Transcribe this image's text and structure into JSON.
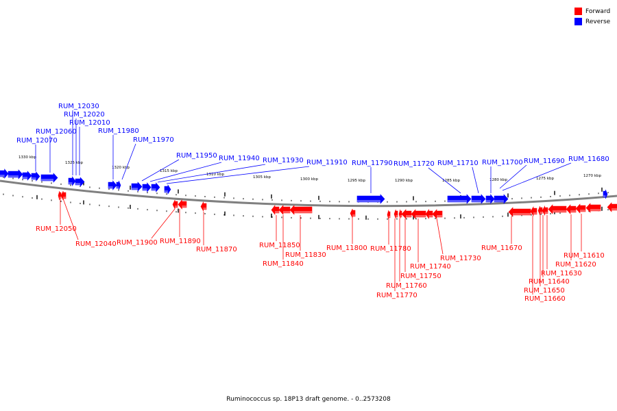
{
  "caption": "Ruminococcus sp. 18P13 draft genome. - 0..2573208",
  "legend": [
    {
      "label": "Forward",
      "color": "#ff0000"
    },
    {
      "label": "Reverse",
      "color": "#0000ff"
    }
  ],
  "colors": {
    "forward": "#ff0000",
    "reverse": "#0000ff",
    "backbone": "#808080"
  },
  "ruler": [
    "1330 kbp",
    "1325 kbp",
    "1320 kbp",
    "1315 kbp",
    "1310 kbp",
    "1305 kbp",
    "1300 kbp",
    "1295 kbp",
    "1290 kbp",
    "1285 kbp",
    "1280 kbp",
    "1275 kbp",
    "1270 kbp"
  ],
  "reverse_labels": [
    "RUM_12030",
    "RUM_12020",
    "RUM_12010",
    "RUM_12060",
    "RUM_11980",
    "RUM_12070",
    "RUM_11970",
    "RUM_11950",
    "RUM_11940",
    "RUM_11930",
    "RUM_11910",
    "RUM_11790",
    "RUM_11720",
    "RUM_11710",
    "RUM_11700",
    "RUM_11690",
    "RUM_11680"
  ],
  "forward_labels": [
    "RUM_12050",
    "RUM_12040",
    "RUM_11900",
    "RUM_11890",
    "RUM_11870",
    "RUM_11850",
    "RUM_11840",
    "RUM_11830",
    "RUM_11800",
    "RUM_11780",
    "RUM_11770",
    "RUM_11760",
    "RUM_11750",
    "RUM_11740",
    "RUM_11730",
    "RUM_11670",
    "RUM_11660",
    "RUM_11650",
    "RUM_11640",
    "RUM_11630",
    "RUM_11620",
    "RUM_11610"
  ]
}
